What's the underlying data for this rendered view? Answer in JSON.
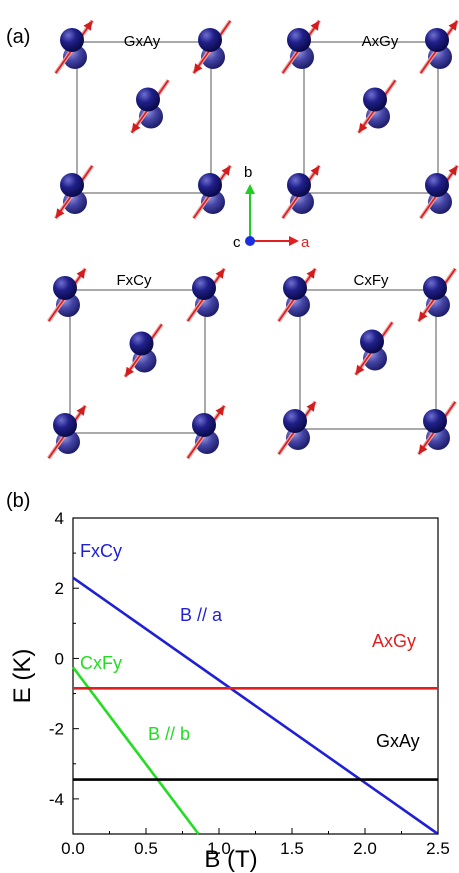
{
  "panel_a": {
    "label": "(a)",
    "configs": [
      "GxAy",
      "AxGy",
      "FxCy",
      "CxFy"
    ],
    "axes": {
      "a": "a",
      "b": "b",
      "c": "c"
    },
    "colors": {
      "atom": "#1a1a80",
      "atom_shade": "#5a5ab0",
      "spin": "#d11d1d",
      "spin_light": "#f0a0a0",
      "a_axis": "#e02020",
      "b_axis": "#22cc22",
      "c_axis": "#1a30e0"
    }
  },
  "panel_b": {
    "label": "(b)",
    "annotations": {
      "fxcy": "FxCy",
      "cxfy": "CxFy",
      "axgy": "AxGy",
      "gxay": "GxAy",
      "b_par_a": "B // a",
      "b_par_b": "B // b"
    }
  },
  "chart_data": {
    "type": "line",
    "xlabel": "B (T)",
    "ylabel": "E (K)",
    "xlim": [
      0,
      2.5
    ],
    "ylim": [
      -5,
      4
    ],
    "xticks": [
      "0.0",
      "0.5",
      "1.0",
      "1.5",
      "2.0",
      "2.5"
    ],
    "yticks": [
      "4",
      "2",
      "0",
      "-2",
      "-4"
    ],
    "grid": false,
    "series": [
      {
        "name": "FxCy",
        "color": "#1f1fd6",
        "x": [
          0,
          2.5
        ],
        "y": [
          2.3,
          -5.0
        ]
      },
      {
        "name": "CxFy",
        "color": "#22dd22",
        "x": [
          0,
          0.86
        ],
        "y": [
          -0.25,
          -5.0
        ]
      },
      {
        "name": "AxGy",
        "color": "#e01f1f",
        "x": [
          0,
          2.5
        ],
        "y": [
          -0.85,
          -0.85
        ]
      },
      {
        "name": "GxAy",
        "color": "#000000",
        "x": [
          0,
          2.5
        ],
        "y": [
          -3.45,
          -3.45
        ]
      }
    ]
  }
}
